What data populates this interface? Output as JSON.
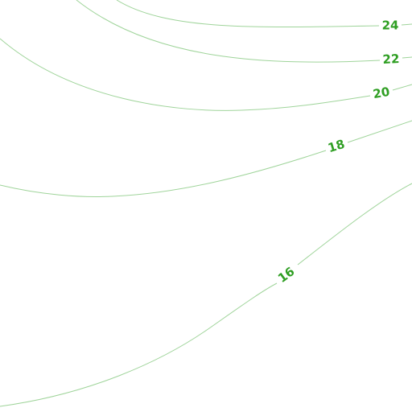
{
  "contours": [
    {
      "level": 24
    },
    {
      "level": 22
    },
    {
      "level": 20
    },
    {
      "level": 18
    },
    {
      "level": 16
    }
  ]
}
